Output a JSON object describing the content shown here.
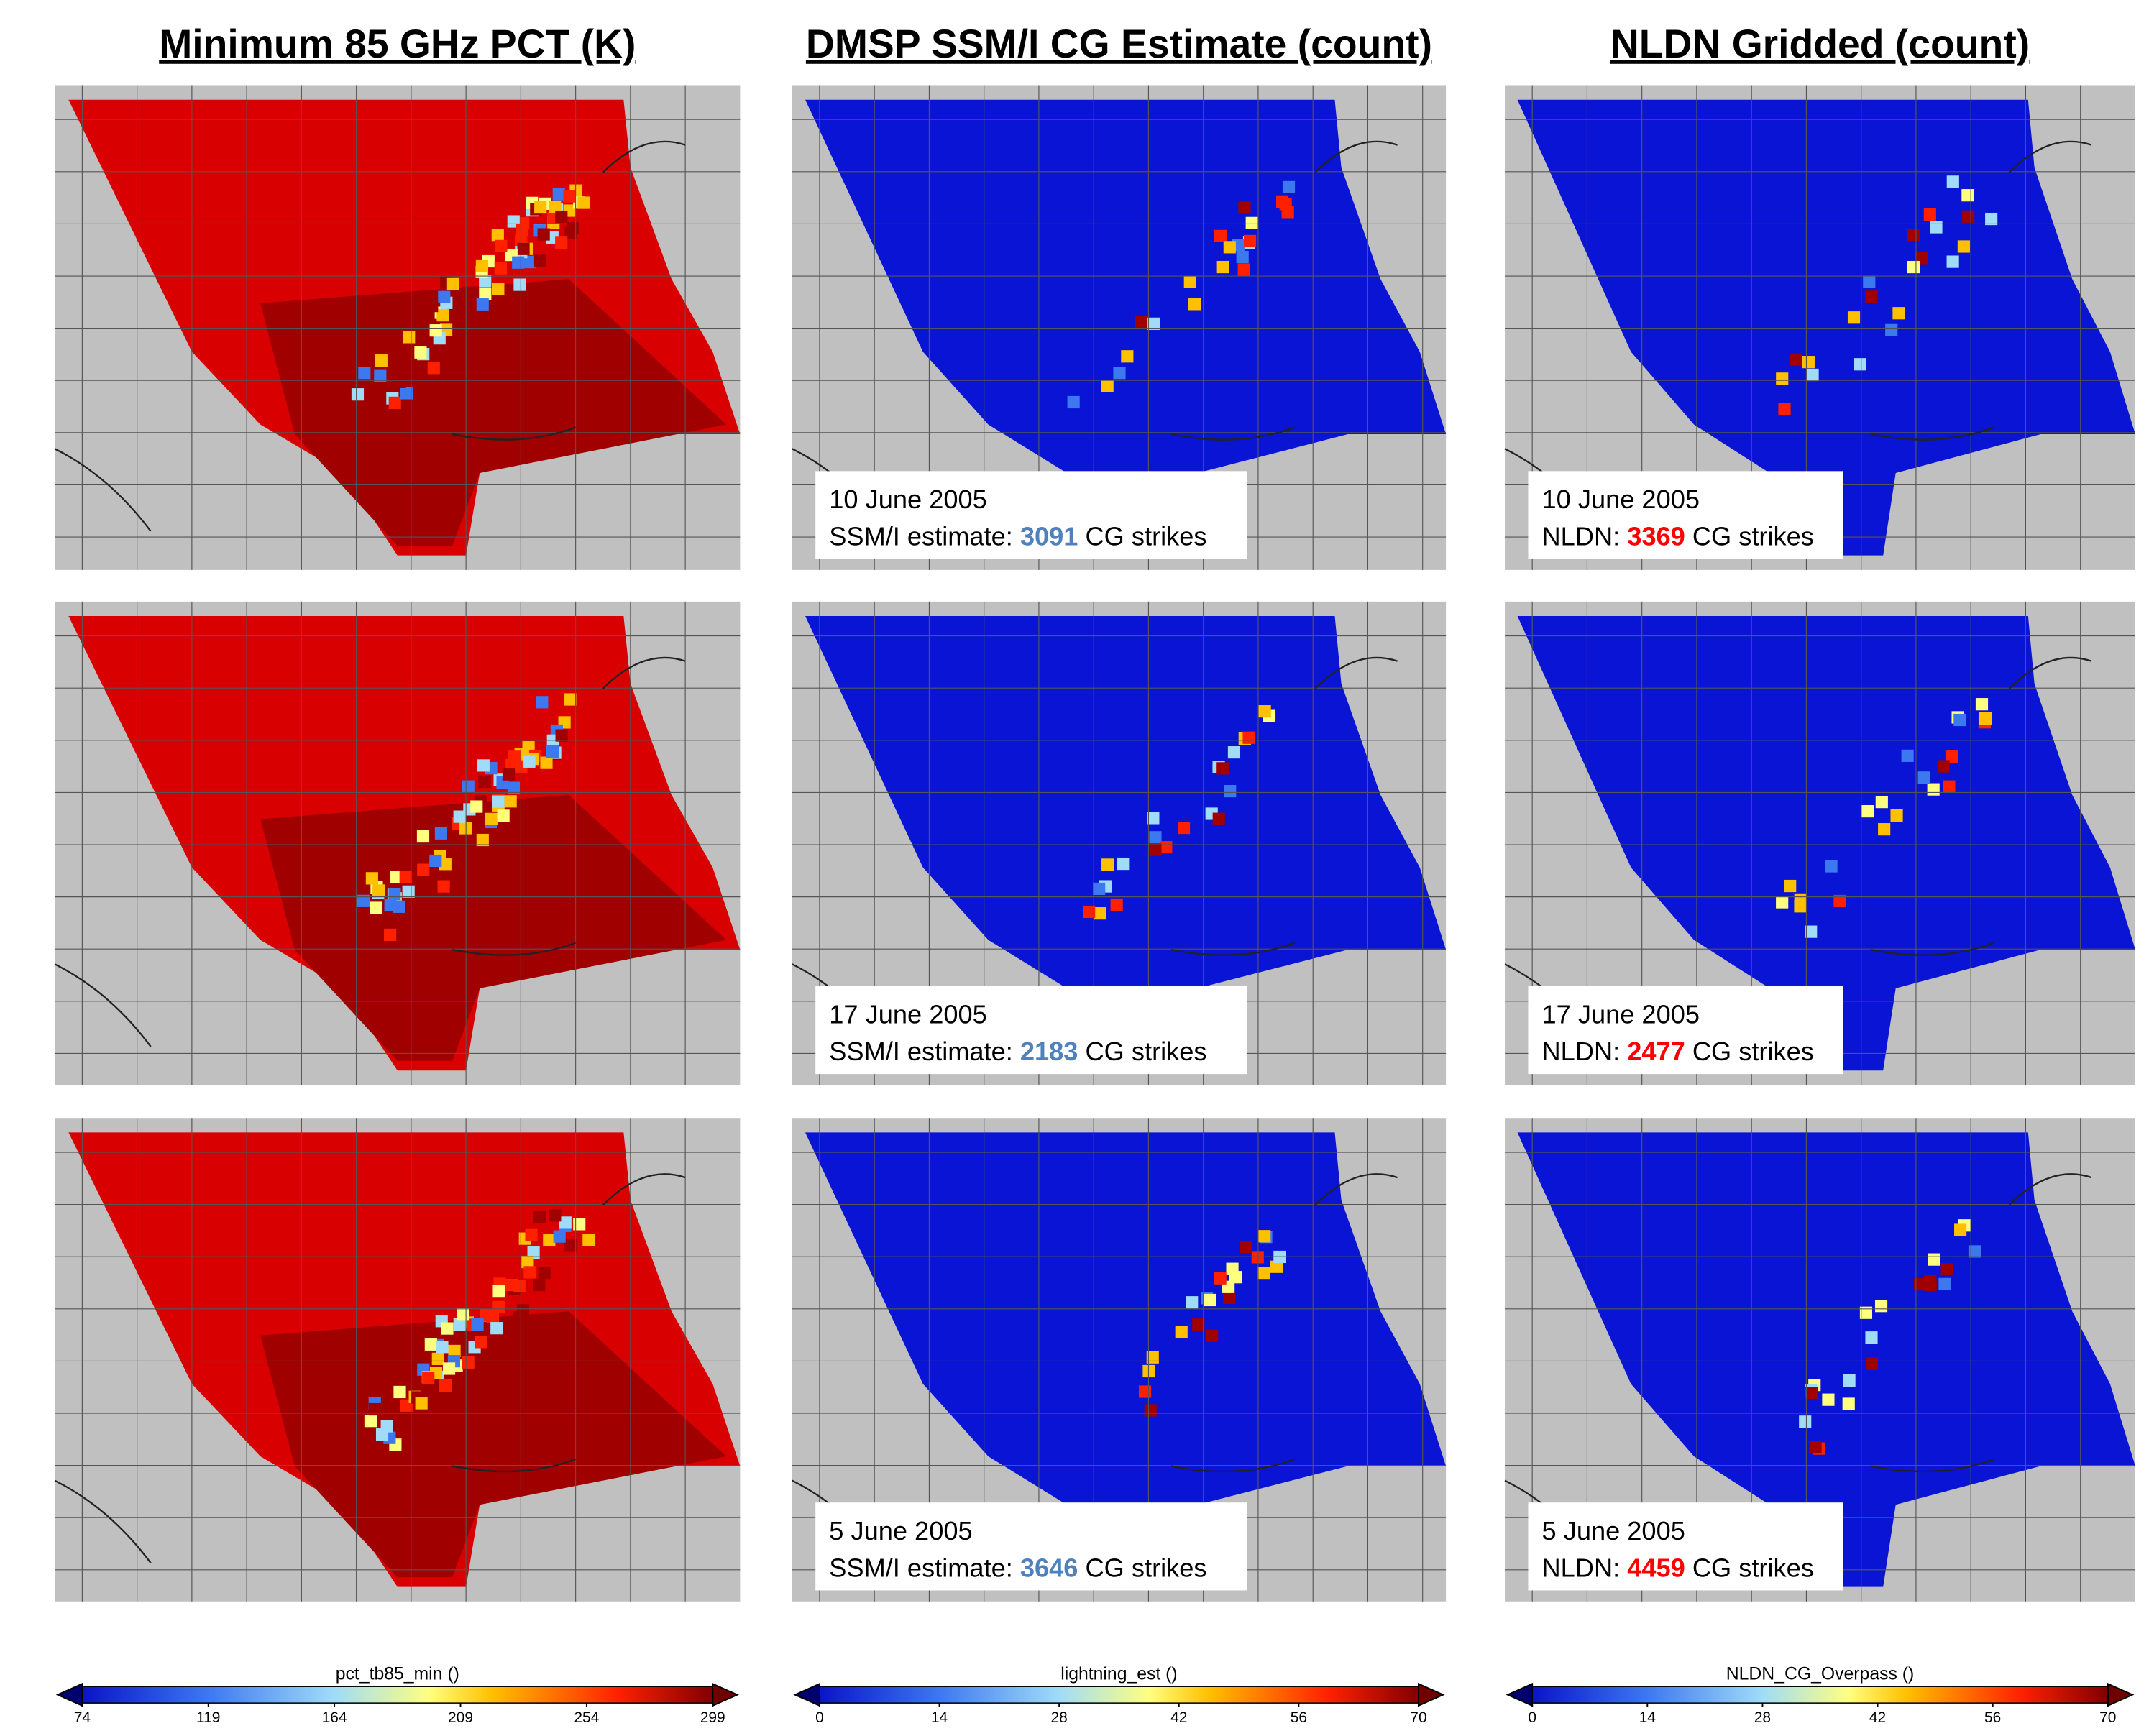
{
  "columns": [
    {
      "title": "Minimum 85 GHz PCT (K)"
    },
    {
      "title": "DMSP SSM/I CG Estimate (count)"
    },
    {
      "title": "NLDN Gridded (count)"
    }
  ],
  "rows": [
    {
      "ssmi": {
        "date": "10 June 2005",
        "label": "SSM/I estimate:",
        "count": 3091,
        "suffix": "CG strikes"
      },
      "nldn": {
        "date": "10 June 2005",
        "label": "NLDN:",
        "count": 3369,
        "suffix": "CG strikes"
      }
    },
    {
      "ssmi": {
        "date": "17 June 2005",
        "label": "SSM/I estimate:",
        "count": 2183,
        "suffix": "CG strikes"
      },
      "nldn": {
        "date": "17 June 2005",
        "label": "NLDN:",
        "count": 2477,
        "suffix": "CG strikes"
      }
    },
    {
      "ssmi": {
        "date": "5 June 2005",
        "label": "SSM/I estimate:",
        "count": 3646,
        "suffix": "CG strikes"
      },
      "nldn": {
        "date": "5 June 2005",
        "label": "NLDN:",
        "count": 4459,
        "suffix": "CG strikes"
      }
    }
  ],
  "colorbars": [
    {
      "label": "pct_tb85_min ()",
      "ticks": [
        74,
        119,
        164,
        209,
        254,
        299
      ]
    },
    {
      "label": "lightning_est ()",
      "ticks": [
        0,
        14,
        28,
        42,
        56,
        70
      ]
    },
    {
      "label": "NLDN_CG_Overpass ()",
      "ticks": [
        0,
        14,
        28,
        42,
        56,
        70
      ]
    }
  ]
}
